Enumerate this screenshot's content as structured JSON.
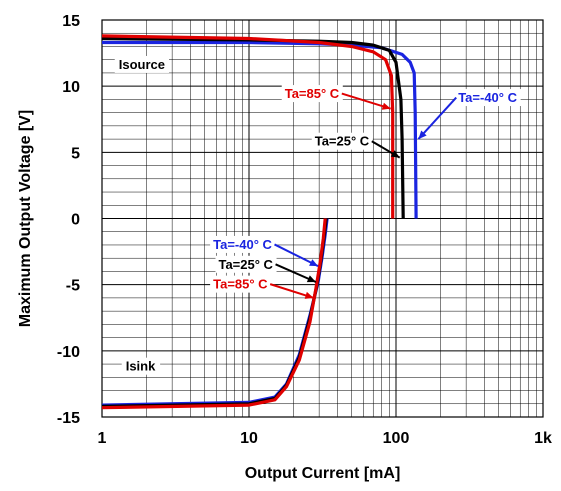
{
  "chart_data": {
    "type": "line",
    "title": "",
    "xlabel": "Output Current [mA]",
    "ylabel": "Maximum Output Voltage [V]",
    "xscale": "log",
    "xlim": [
      1,
      1000
    ],
    "ylim": [
      -15,
      15
    ],
    "grid": true,
    "x_ticks": [
      {
        "value": 1,
        "label": "1"
      },
      {
        "value": 10,
        "label": "10"
      },
      {
        "value": 100,
        "label": "100"
      },
      {
        "value": 1000,
        "label": "1k"
      }
    ],
    "y_ticks": [
      {
        "value": 15,
        "label": "15"
      },
      {
        "value": 10,
        "label": "10"
      },
      {
        "value": 5,
        "label": "5"
      },
      {
        "value": 0,
        "label": "0"
      },
      {
        "value": -5,
        "label": "-5"
      },
      {
        "value": -10,
        "label": "-10"
      },
      {
        "value": -15,
        "label": "-15"
      }
    ],
    "region_labels": [
      {
        "text": "Isource",
        "x": 1.3,
        "y": 11.3
      },
      {
        "text": "Isink",
        "x": 1.45,
        "y": -11.5
      }
    ],
    "series": [
      {
        "name": "Ta=25° C",
        "color": "#000000",
        "source": [
          [
            1,
            13.6
          ],
          [
            10,
            13.5
          ],
          [
            30,
            13.4
          ],
          [
            50,
            13.3
          ],
          [
            70,
            13.1
          ],
          [
            90,
            12.7
          ],
          [
            100,
            11.8
          ],
          [
            108,
            9.0
          ],
          [
            110,
            6.0
          ],
          [
            112,
            0
          ]
        ],
        "sink": [
          [
            1,
            -14.2
          ],
          [
            10,
            -14.0
          ],
          [
            15,
            -13.6
          ],
          [
            18,
            -12.6
          ],
          [
            22,
            -10.5
          ],
          [
            26,
            -7.5
          ],
          [
            29,
            -5.0
          ],
          [
            31,
            -3.0
          ],
          [
            32.5,
            -1.3
          ],
          [
            33.5,
            0
          ]
        ]
      },
      {
        "name": "Ta=85° C",
        "color": "#e00000",
        "source": [
          [
            1,
            13.8
          ],
          [
            10,
            13.6
          ],
          [
            30,
            13.3
          ],
          [
            50,
            13.0
          ],
          [
            70,
            12.6
          ],
          [
            85,
            12.0
          ],
          [
            93,
            10.8
          ],
          [
            95,
            8.0
          ],
          [
            95,
            0
          ]
        ],
        "sink": [
          [
            1,
            -14.3
          ],
          [
            10,
            -14.1
          ],
          [
            15,
            -13.7
          ],
          [
            18,
            -12.7
          ],
          [
            22,
            -10.7
          ],
          [
            26,
            -7.8
          ],
          [
            28.5,
            -5.3
          ],
          [
            30.5,
            -3.3
          ],
          [
            32,
            -1.5
          ],
          [
            33,
            0
          ]
        ]
      },
      {
        "name": "Ta=-40° C",
        "color": "#1a24e0",
        "source": [
          [
            1,
            13.3
          ],
          [
            10,
            13.3
          ],
          [
            30,
            13.2
          ],
          [
            50,
            13.1
          ],
          [
            80,
            12.9
          ],
          [
            110,
            12.4
          ],
          [
            125,
            11.8
          ],
          [
            133,
            11.0
          ],
          [
            135,
            8.0
          ],
          [
            137,
            0
          ]
        ],
        "sink": [
          [
            1,
            -14.1
          ],
          [
            10,
            -13.9
          ],
          [
            15,
            -13.5
          ],
          [
            18,
            -12.5
          ],
          [
            22,
            -10.3
          ],
          [
            26,
            -7.3
          ],
          [
            29.5,
            -4.8
          ],
          [
            31.5,
            -2.8
          ],
          [
            33,
            -1.2
          ],
          [
            34,
            0
          ]
        ]
      }
    ],
    "annotations": [
      {
        "text": "Ta=85° C",
        "color": "#e00000",
        "label_at": [
          17.5,
          9.1
        ],
        "arrow_to": [
          92,
          8.3
        ]
      },
      {
        "text": "Ta=-40° C",
        "color": "#1a24e0",
        "label_at": [
          265,
          8.8
        ],
        "arrow_to": [
          142,
          6.0
        ]
      },
      {
        "text": "Ta=25° C",
        "color": "#000000",
        "label_at": [
          28,
          5.5
        ],
        "arrow_to": [
          106,
          4.6
        ]
      },
      {
        "text": "Ta=-40° C",
        "color": "#1a24e0",
        "label_at": [
          5.7,
          -2.3
        ],
        "arrow_to": [
          29.5,
          -3.6
        ]
      },
      {
        "text": "Ta=25° C",
        "color": "#000000",
        "label_at": [
          6.2,
          -3.8
        ],
        "arrow_to": [
          28.5,
          -4.8
        ]
      },
      {
        "text": "Ta=85° C",
        "color": "#e00000",
        "label_at": [
          5.7,
          -5.3
        ],
        "arrow_to": [
          27.5,
          -6.0
        ]
      }
    ]
  }
}
